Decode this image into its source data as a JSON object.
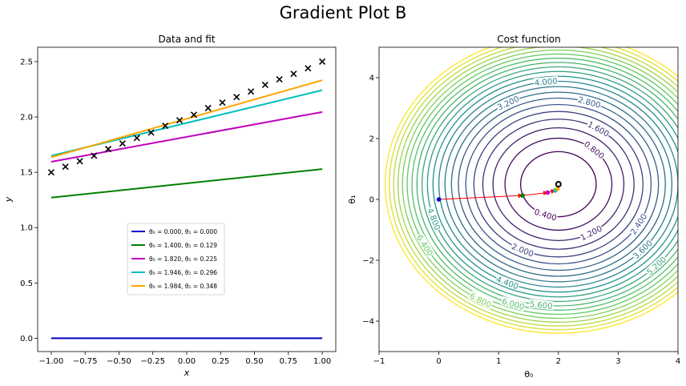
{
  "figure": {
    "suptitle": "Gradient Plot B"
  },
  "chart_data": [
    {
      "type": "line",
      "title": "Data and fit",
      "xlabel": "x",
      "ylabel": "y",
      "xlim": [
        -1.1,
        1.1
      ],
      "ylim": [
        -0.12,
        2.63
      ],
      "xticks": [
        -1.0,
        -0.75,
        -0.5,
        -0.25,
        0.0,
        0.25,
        0.5,
        0.75,
        1.0
      ],
      "xtick_labels": [
        "−1.00",
        "−0.75",
        "−0.50",
        "−0.25",
        "0.00",
        "0.25",
        "0.50",
        "0.75",
        "1.00"
      ],
      "yticks": [
        0.0,
        0.5,
        1.0,
        1.5,
        2.0,
        2.5
      ],
      "ytick_labels": [
        "0.0",
        "0.5",
        "1.0",
        "1.5",
        "2.0",
        "2.5"
      ],
      "data_points": {
        "marker": "x",
        "x": [
          -1.0,
          -0.895,
          -0.789,
          -0.684,
          -0.579,
          -0.474,
          -0.368,
          -0.263,
          -0.158,
          -0.053,
          0.053,
          0.158,
          0.263,
          0.368,
          0.474,
          0.579,
          0.684,
          0.789,
          0.895,
          1.0
        ],
        "y": [
          1.5,
          1.55,
          1.6,
          1.65,
          1.71,
          1.76,
          1.81,
          1.86,
          1.92,
          1.97,
          2.02,
          2.08,
          2.13,
          2.18,
          2.23,
          2.29,
          2.34,
          2.39,
          2.44,
          2.5
        ]
      },
      "series": [
        {
          "name": "θ₀ = 0.000, θ₁ = 0.000",
          "theta0": 0.0,
          "theta1": 0.0,
          "color": "#0000cc"
        },
        {
          "name": "θ₀ = 1.400, θ₁ = 0.129",
          "theta0": 1.4,
          "theta1": 0.129,
          "color": "#008000"
        },
        {
          "name": "θ₀ = 1.820, θ₁ = 0.225",
          "theta0": 1.82,
          "theta1": 0.225,
          "color": "#bf00bf"
        },
        {
          "name": "θ₀ = 1.946, θ₁ = 0.296",
          "theta0": 1.946,
          "theta1": 0.296,
          "color": "#00bfbf"
        },
        {
          "name": "θ₀ = 1.984, θ₁ = 0.348",
          "theta0": 1.984,
          "theta1": 0.348,
          "color": "#ffa500"
        }
      ],
      "legend": "center"
    },
    {
      "type": "contour",
      "title": "Cost function",
      "xlabel": "θ₀",
      "ylabel": "θ₁",
      "xlim": [
        -1,
        4
      ],
      "ylim": [
        -5,
        5
      ],
      "xticks": [
        -1,
        0,
        1,
        2,
        3,
        4
      ],
      "xtick_labels": [
        "−1",
        "0",
        "1",
        "2",
        "3",
        "4"
      ],
      "yticks": [
        -4,
        -2,
        0,
        2,
        4
      ],
      "ytick_labels": [
        "−4",
        "−2",
        "0",
        "2",
        "4"
      ],
      "minimum": [
        2.0,
        0.5
      ],
      "cost_scale": {
        "theta0": 1.0,
        "theta1": 0.35
      },
      "levels": [
        0.4,
        0.8,
        1.2,
        1.6,
        2.0,
        2.4,
        2.8,
        3.2,
        3.6,
        4.0,
        4.4,
        4.8,
        5.2,
        5.6,
        6.0,
        6.4,
        6.8,
        7.2,
        7.6,
        8.0,
        8.4
      ],
      "contour_labels": [
        {
          "text": "0.400",
          "level": 0.4,
          "angle_deg": 250
        },
        {
          "text": "0.800",
          "level": 0.8,
          "angle_deg": 48
        },
        {
          "text": "1.200",
          "level": 1.2,
          "angle_deg": 300
        },
        {
          "text": "1.600",
          "level": 1.6,
          "angle_deg": 58
        },
        {
          "text": "2.000",
          "level": 2.0,
          "angle_deg": 245
        },
        {
          "text": "2.400",
          "level": 2.4,
          "angle_deg": 330
        },
        {
          "text": "2.800",
          "level": 2.8,
          "angle_deg": 72
        },
        {
          "text": "3.200",
          "level": 3.2,
          "angle_deg": 118
        },
        {
          "text": "3.600",
          "level": 3.6,
          "angle_deg": 318
        },
        {
          "text": "4.000",
          "level": 4.0,
          "angle_deg": 96
        },
        {
          "text": "4.400",
          "level": 4.4,
          "angle_deg": 246
        },
        {
          "text": "4.800",
          "level": 4.8,
          "angle_deg": 198
        },
        {
          "text": "5.200",
          "level": 5.2,
          "angle_deg": 316
        },
        {
          "text": "5.600",
          "level": 5.6,
          "angle_deg": 263
        },
        {
          "text": "6.000",
          "level": 6.0,
          "angle_deg": 252
        },
        {
          "text": "6.400",
          "level": 6.4,
          "angle_deg": 208
        },
        {
          "text": "6.800",
          "level": 6.8,
          "angle_deg": 240
        }
      ],
      "path": {
        "line_color": "#ff0000",
        "points": [
          {
            "theta0": 0.0,
            "theta1": 0.0,
            "color": "#0000cc"
          },
          {
            "theta0": 1.4,
            "theta1": 0.129,
            "color": "#008000"
          },
          {
            "theta0": 1.82,
            "theta1": 0.225,
            "color": "#bf00bf"
          },
          {
            "theta0": 1.946,
            "theta1": 0.296,
            "color": "#00bfbf"
          },
          {
            "theta0": 1.984,
            "theta1": 0.348,
            "color": "#ffa500"
          }
        ]
      }
    }
  ]
}
